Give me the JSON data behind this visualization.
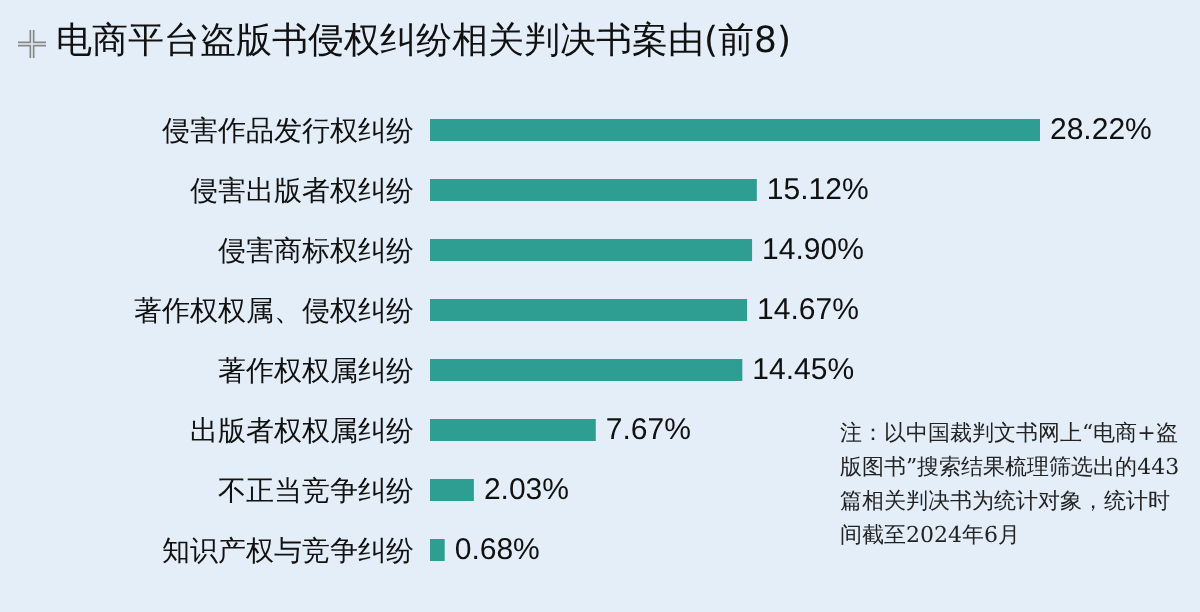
{
  "chart_data": {
    "type": "bar",
    "orientation": "horizontal",
    "title": "电商平台盗版书侵权纠纷相关判决书案由(前8)",
    "categories": [
      "侵害作品发行权纠纷",
      "侵害出版者权纠纷",
      "侵害商标权纠纷",
      "著作权权属、侵权纠纷",
      "著作权权属纠纷",
      "出版者权权属纠纷",
      "不正当竞争纠纷",
      "知识产权与竞争纠纷"
    ],
    "values": [
      28.22,
      15.12,
      14.9,
      14.67,
      14.45,
      7.67,
      2.03,
      0.68
    ],
    "value_labels": [
      "28.22%",
      "15.12%",
      "14.90%",
      "14.67%",
      "14.45%",
      "7.67%",
      "2.03%",
      "0.68%"
    ],
    "color": "#2e9e92",
    "annotations": [
      "注：以中国裁判文书网上“电商+盗版图书”搜索结果梳理筛选出的443篇相关判决书为统计对象，统计时间截至2024年6月"
    ]
  }
}
